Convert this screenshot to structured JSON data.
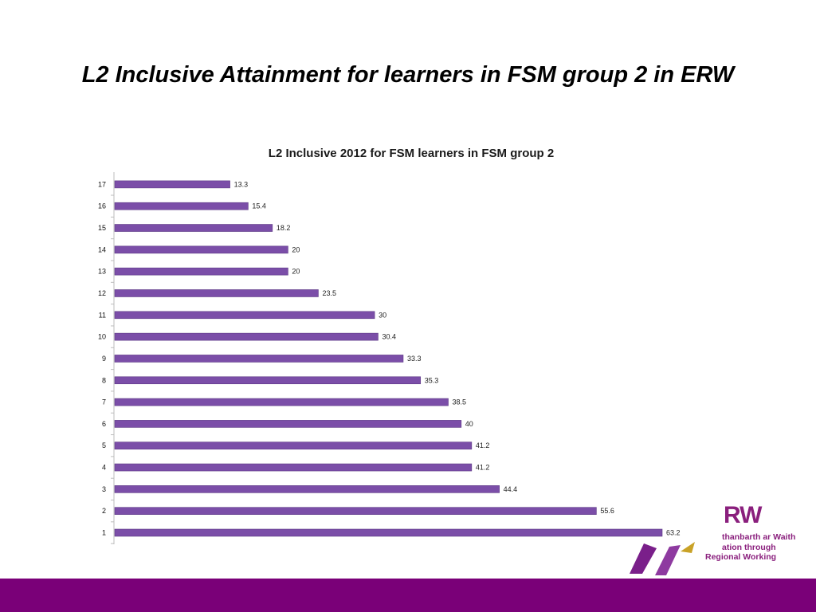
{
  "slide": {
    "title": "L2 Inclusive Attainment for learners in FSM group 2 in ERW"
  },
  "logo": {
    "mark": "RW",
    "line1": "thanbarth ar Waith",
    "line2": "ation through",
    "line3": "Regional Working",
    "colors": {
      "text": "#8a1f7d",
      "shape_purple": "#7a1f8a",
      "shape_gold": "#c9a227"
    }
  },
  "colors": {
    "bar": "#7b4ea8",
    "bar_edge": "#5e3a86",
    "footer": "#7a0078",
    "axis": "#bdbdbd"
  },
  "chart_data": {
    "type": "bar",
    "orientation": "horizontal",
    "title": "L2 Inclusive 2012 for FSM learners in FSM group 2",
    "xlabel": "",
    "ylabel": "",
    "categories": [
      "1",
      "2",
      "3",
      "4",
      "5",
      "6",
      "7",
      "8",
      "9",
      "10",
      "11",
      "12",
      "13",
      "14",
      "15",
      "16",
      "17"
    ],
    "values": [
      63.2,
      55.6,
      44.4,
      41.2,
      41.2,
      40,
      38.5,
      35.3,
      33.3,
      30.4,
      30,
      23.5,
      20,
      20,
      18.2,
      15.4,
      13.3
    ],
    "value_labels": [
      "63.2",
      "55.6",
      "44.4",
      "41.2",
      "41.2",
      "40",
      "38.5",
      "35.3",
      "33.3",
      "30.4",
      "30",
      "23.5",
      "20",
      "20",
      "18.2",
      "15.4",
      "13.3"
    ],
    "xlim": [
      0,
      65
    ],
    "grid": false,
    "legend": "none"
  }
}
